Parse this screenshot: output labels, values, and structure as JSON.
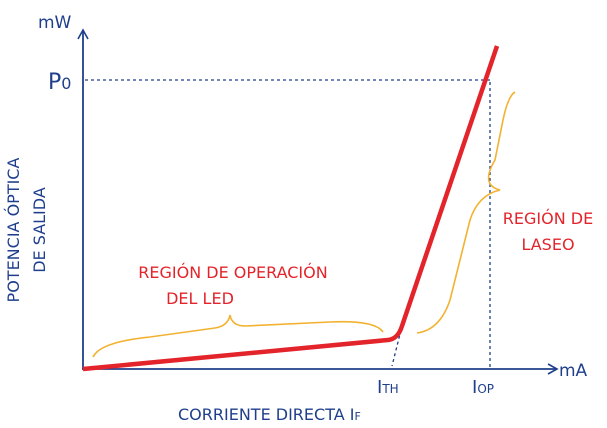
{
  "axes": {
    "y_unit": "mW",
    "x_unit": "mA",
    "y_title": [
      "POTENCIA ÓPTICA",
      "DE SALIDA"
    ],
    "x_title": {
      "main": "CORRIENTE DIRECTA I",
      "sub": "F"
    }
  },
  "markers": {
    "po": {
      "main": "P",
      "sub": "0"
    },
    "ith": {
      "main": "I",
      "sub": "TH"
    },
    "iop": {
      "main": "I",
      "sub": "OP"
    }
  },
  "regions": {
    "led": [
      "REGIÓN DE OPERACIÓN",
      "DEL LED"
    ],
    "laser": [
      "REGIÓN DE",
      "LASEO"
    ]
  }
}
